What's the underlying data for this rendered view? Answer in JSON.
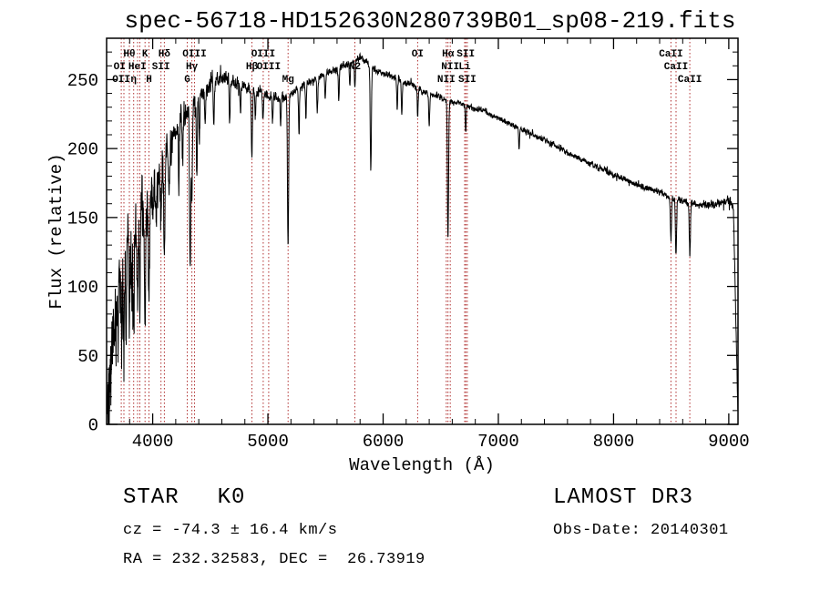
{
  "title": "spec-56718-HD152630N280739B01_sp08-219.fits",
  "annotations": {
    "class_label": "STAR",
    "subclass": "K0",
    "survey": "LAMOST DR3",
    "cz": "cz = -74.3 ± 16.4 km/s",
    "obs_date": "Obs-Date: 20140301",
    "ra_dec": "RA = 232.32583, DEC =  26.73919"
  },
  "chart_data": {
    "type": "line",
    "title": "spec-56718-HD152630N280739B01_sp08-219.fits",
    "xlabel": "Wavelength (Å)",
    "ylabel": "Flux (relative)",
    "xlim": [
      3600,
      9080
    ],
    "ylim": [
      0,
      280
    ],
    "xticks": [
      4000,
      5000,
      6000,
      7000,
      8000,
      9000
    ],
    "yticks": [
      0,
      50,
      100,
      150,
      200,
      250
    ],
    "x_minor_step": 200,
    "y_minor_step": 10,
    "grid": false,
    "line_color": "#000000",
    "frame_color": "#000000",
    "marker_color": "#b03030",
    "seed": 42,
    "marker_lines": [
      3727,
      3750,
      3798,
      3835,
      3869,
      3889,
      3934,
      3968,
      4072,
      4101,
      4300,
      4340,
      4363,
      4861,
      4959,
      5007,
      5175,
      5755,
      6300,
      6548,
      6563,
      6583,
      6708,
      6717,
      6731,
      8498,
      8542,
      8662
    ],
    "marker_labels": [
      {
        "text": "Hθ",
        "wavelength": 3798,
        "row": 1
      },
      {
        "text": "K",
        "wavelength": 3934,
        "row": 1
      },
      {
        "text": "Hδ",
        "wavelength": 4101,
        "row": 1
      },
      {
        "text": "OIII",
        "wavelength": 4363,
        "row": 1
      },
      {
        "text": "OIII",
        "wavelength": 4959,
        "row": 1
      },
      {
        "text": "OI",
        "wavelength": 6300,
        "row": 1
      },
      {
        "text": "Hα",
        "wavelength": 6563,
        "row": 1
      },
      {
        "text": "SII",
        "wavelength": 6717,
        "row": 1
      },
      {
        "text": "CaII",
        "wavelength": 8498,
        "row": 1
      },
      {
        "text": "OI",
        "wavelength": 3712,
        "row": 2
      },
      {
        "text": "HeI",
        "wavelength": 3867,
        "row": 2
      },
      {
        "text": "SII",
        "wavelength": 4072,
        "row": 2
      },
      {
        "text": "Hγ",
        "wavelength": 4340,
        "row": 2
      },
      {
        "text": "Hβ",
        "wavelength": 4861,
        "row": 2
      },
      {
        "text": "OIII",
        "wavelength": 5007,
        "row": 2
      },
      {
        "text": "N2",
        "wavelength": 5755,
        "row": 2
      },
      {
        "text": "NII",
        "wavelength": 6583,
        "row": 2
      },
      {
        "text": "Li",
        "wavelength": 6708,
        "row": 2
      },
      {
        "text": "CaII",
        "wavelength": 8542,
        "row": 2
      },
      {
        "text": "OII",
        "wavelength": 3727,
        "row": 3
      },
      {
        "text": "η",
        "wavelength": 3835,
        "row": 3
      },
      {
        "text": "H",
        "wavelength": 3968,
        "row": 3
      },
      {
        "text": "G",
        "wavelength": 4300,
        "row": 3
      },
      {
        "text": "Mg",
        "wavelength": 5175,
        "row": 3
      },
      {
        "text": "NII",
        "wavelength": 6548,
        "row": 3
      },
      {
        "text": "SII",
        "wavelength": 6731,
        "row": 3
      },
      {
        "text": "CaII",
        "wavelength": 8662,
        "row": 3
      }
    ],
    "continuum": [
      [
        3600,
        15
      ],
      [
        3640,
        45
      ],
      [
        3680,
        75
      ],
      [
        3720,
        105
      ],
      [
        3760,
        120
      ],
      [
        3800,
        130
      ],
      [
        3850,
        140
      ],
      [
        3900,
        150
      ],
      [
        3950,
        158
      ],
      [
        4000,
        168
      ],
      [
        4060,
        178
      ],
      [
        4120,
        192
      ],
      [
        4180,
        208
      ],
      [
        4240,
        220
      ],
      [
        4300,
        228
      ],
      [
        4360,
        234
      ],
      [
        4420,
        240
      ],
      [
        4480,
        244
      ],
      [
        4540,
        248
      ],
      [
        4600,
        251
      ],
      [
        4660,
        250
      ],
      [
        4720,
        248
      ],
      [
        4780,
        246
      ],
      [
        4840,
        244
      ],
      [
        4900,
        241
      ],
      [
        4960,
        240
      ],
      [
        5020,
        238
      ],
      [
        5080,
        237
      ],
      [
        5140,
        237
      ],
      [
        5200,
        240
      ],
      [
        5260,
        243
      ],
      [
        5320,
        246
      ],
      [
        5380,
        249
      ],
      [
        5440,
        251
      ],
      [
        5500,
        254
      ],
      [
        5560,
        256
      ],
      [
        5620,
        259
      ],
      [
        5680,
        261
      ],
      [
        5740,
        263
      ],
      [
        5800,
        266
      ],
      [
        5860,
        263
      ],
      [
        5920,
        258
      ],
      [
        5980,
        255
      ],
      [
        6040,
        253
      ],
      [
        6100,
        251
      ],
      [
        6160,
        249
      ],
      [
        6220,
        247
      ],
      [
        6280,
        245
      ],
      [
        6340,
        242
      ],
      [
        6400,
        240
      ],
      [
        6460,
        238
      ],
      [
        6520,
        236
      ],
      [
        6580,
        234
      ],
      [
        6640,
        233
      ],
      [
        6700,
        232
      ],
      [
        6760,
        230
      ],
      [
        6820,
        228
      ],
      [
        6880,
        227
      ],
      [
        6940,
        224
      ],
      [
        7000,
        222
      ],
      [
        7100,
        218
      ],
      [
        7200,
        214
      ],
      [
        7300,
        210
      ],
      [
        7400,
        206
      ],
      [
        7500,
        202
      ],
      [
        7600,
        197
      ],
      [
        7700,
        193
      ],
      [
        7800,
        189
      ],
      [
        7900,
        185
      ],
      [
        8000,
        181
      ],
      [
        8100,
        178
      ],
      [
        8200,
        174
      ],
      [
        8300,
        171
      ],
      [
        8400,
        168
      ],
      [
        8500,
        165
      ],
      [
        8600,
        162
      ],
      [
        8700,
        160
      ],
      [
        8800,
        159
      ],
      [
        8900,
        160
      ],
      [
        9000,
        162
      ],
      [
        9040,
        158
      ],
      [
        9079,
        8
      ]
    ],
    "noise_profile": [
      [
        3600,
        55
      ],
      [
        3700,
        55
      ],
      [
        3800,
        46
      ],
      [
        3900,
        38
      ],
      [
        4000,
        30
      ],
      [
        4100,
        25
      ],
      [
        4200,
        18
      ],
      [
        4300,
        14
      ],
      [
        4400,
        11
      ],
      [
        4600,
        8
      ],
      [
        4800,
        7
      ],
      [
        5000,
        6
      ],
      [
        5200,
        5
      ],
      [
        5600,
        4.5
      ],
      [
        6000,
        4
      ],
      [
        6500,
        3.5
      ],
      [
        7000,
        3.2
      ],
      [
        7500,
        3.2
      ],
      [
        8000,
        3.5
      ],
      [
        8500,
        4
      ],
      [
        9000,
        5
      ]
    ],
    "absorption_lines": [
      [
        3727,
        50,
        5
      ],
      [
        3750,
        55,
        4
      ],
      [
        3770,
        45,
        4
      ],
      [
        3798,
        70,
        4
      ],
      [
        3820,
        40,
        4
      ],
      [
        3835,
        75,
        4
      ],
      [
        3869,
        50,
        4
      ],
      [
        3889,
        60,
        4
      ],
      [
        3934,
        85,
        5
      ],
      [
        3968,
        75,
        5
      ],
      [
        4030,
        35,
        4
      ],
      [
        4072,
        40,
        4
      ],
      [
        4101,
        65,
        5
      ],
      [
        4144,
        30,
        4
      ],
      [
        4227,
        45,
        4
      ],
      [
        4260,
        35,
        4
      ],
      [
        4325,
        115,
        5
      ],
      [
        4340,
        70,
        5
      ],
      [
        4383,
        55,
        4
      ],
      [
        4405,
        35,
        4
      ],
      [
        4455,
        25,
        4
      ],
      [
        4531,
        30,
        4
      ],
      [
        4668,
        30,
        4
      ],
      [
        4762,
        20,
        4
      ],
      [
        4861,
        50,
        5
      ],
      [
        4891,
        20,
        4
      ],
      [
        4957,
        18,
        4
      ],
      [
        5041,
        18,
        4
      ],
      [
        5110,
        20,
        4
      ],
      [
        5175,
        110,
        5
      ],
      [
        5270,
        35,
        4
      ],
      [
        5330,
        25,
        4
      ],
      [
        5429,
        25,
        4
      ],
      [
        5497,
        18,
        4
      ],
      [
        5615,
        25,
        4
      ],
      [
        5711,
        18,
        4
      ],
      [
        5755,
        20,
        4
      ],
      [
        5893,
        75,
        5
      ],
      [
        6122,
        22,
        4
      ],
      [
        6162,
        25,
        4
      ],
      [
        6300,
        20,
        4
      ],
      [
        6400,
        25,
        4
      ],
      [
        6563,
        100,
        5
      ],
      [
        6717,
        20,
        4
      ],
      [
        7180,
        15,
        4
      ],
      [
        8498,
        30,
        5
      ],
      [
        8542,
        42,
        5
      ],
      [
        8662,
        38,
        5
      ]
    ]
  }
}
